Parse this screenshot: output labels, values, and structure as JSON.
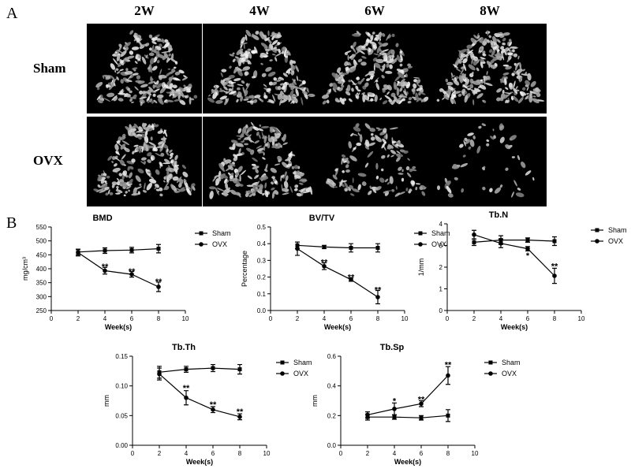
{
  "figure": {
    "panel_a": "A",
    "panel_b": "B",
    "columns": [
      "2W",
      "4W",
      "6W",
      "8W"
    ],
    "rows": [
      "Sham",
      "OVX"
    ]
  },
  "scan_images": [
    {
      "row": "Sham",
      "col": "2W",
      "density": 0.85
    },
    {
      "row": "Sham",
      "col": "4W",
      "density": 0.85
    },
    {
      "row": "Sham",
      "col": "6W",
      "density": 0.85
    },
    {
      "row": "Sham",
      "col": "8W",
      "density": 0.9
    },
    {
      "row": "OVX",
      "col": "2W",
      "density": 0.75
    },
    {
      "row": "OVX",
      "col": "4W",
      "density": 0.8
    },
    {
      "row": "OVX",
      "col": "6W",
      "density": 0.45
    },
    {
      "row": "OVX",
      "col": "8W",
      "density": 0.2
    }
  ],
  "chart_data": [
    {
      "type": "line",
      "title": "BMD",
      "xlabel": "Week(s)",
      "ylabel": "mg/cm³",
      "xlim": [
        0,
        10
      ],
      "ylim": [
        250,
        550
      ],
      "xticks": [
        0,
        2,
        4,
        6,
        8,
        10
      ],
      "yticks": [
        250,
        300,
        350,
        400,
        450,
        500,
        550
      ],
      "ytick_labels": [
        "250",
        "300",
        "350",
        "400",
        "450",
        "500",
        "550"
      ],
      "legend": "right",
      "series": [
        {
          "name": "Sham",
          "marker": "square",
          "x": [
            2,
            4,
            6,
            8
          ],
          "y": [
            460,
            465,
            467,
            472
          ],
          "err": [
            10,
            10,
            10,
            15
          ]
        },
        {
          "name": "OVX",
          "marker": "circle",
          "x": [
            2,
            4,
            6,
            8
          ],
          "y": [
            458,
            393,
            380,
            335
          ],
          "err": [
            12,
            12,
            10,
            17
          ]
        }
      ],
      "annotations": [
        {
          "x": 4,
          "y": 408,
          "text": "**"
        },
        {
          "x": 6,
          "y": 392,
          "text": "**"
        },
        {
          "x": 8,
          "y": 355,
          "text": "**"
        }
      ]
    },
    {
      "type": "line",
      "title": "BV/TV",
      "xlabel": "Week(s)",
      "ylabel": "Percentage",
      "xlim": [
        0,
        10
      ],
      "ylim": [
        0,
        0.5
      ],
      "xticks": [
        0,
        2,
        4,
        6,
        8,
        10
      ],
      "yticks": [
        0,
        0.1,
        0.2,
        0.3,
        0.4,
        0.5
      ],
      "ytick_labels": [
        "0.0",
        "0.1",
        "0.2",
        "0.3",
        "0.4",
        "0.5"
      ],
      "legend": "right",
      "series": [
        {
          "name": "Sham",
          "marker": "square",
          "x": [
            2,
            4,
            6,
            8
          ],
          "y": [
            0.39,
            0.38,
            0.375,
            0.375
          ],
          "err": [
            0.02,
            0.01,
            0.025,
            0.025
          ]
        },
        {
          "name": "OVX",
          "marker": "circle",
          "x": [
            2,
            4,
            6,
            8
          ],
          "y": [
            0.37,
            0.265,
            0.185,
            0.08
          ],
          "err": [
            0.04,
            0.02,
            0.01,
            0.04
          ]
        }
      ],
      "annotations": [
        {
          "x": 4,
          "y": 0.29,
          "text": "**"
        },
        {
          "x": 6,
          "y": 0.2,
          "text": "**"
        },
        {
          "x": 8,
          "y": 0.125,
          "text": "**"
        }
      ]
    },
    {
      "type": "line",
      "title": "Tb.N",
      "xlabel": "Week(s)",
      "ylabel": "1/mm",
      "xlim": [
        0,
        10
      ],
      "ylim": [
        0,
        4
      ],
      "xticks": [
        0,
        2,
        4,
        6,
        8,
        10
      ],
      "yticks": [
        0,
        1,
        2,
        3,
        4
      ],
      "ytick_labels": [
        "0",
        "1",
        "2",
        "3",
        "4"
      ],
      "legend": "right",
      "series": [
        {
          "name": "Sham",
          "marker": "square",
          "x": [
            2,
            4,
            6,
            8
          ],
          "y": [
            3.15,
            3.25,
            3.25,
            3.2
          ],
          "err": [
            0.15,
            0.2,
            0.1,
            0.2
          ]
        },
        {
          "name": "OVX",
          "marker": "circle",
          "x": [
            2,
            4,
            6,
            8
          ],
          "y": [
            3.5,
            3.1,
            2.85,
            1.6
          ],
          "err": [
            0.2,
            0.2,
            0.1,
            0.35
          ]
        }
      ],
      "annotations": [
        {
          "x": 6,
          "y": 2.55,
          "text": "*"
        },
        {
          "x": 8,
          "y": 2.05,
          "text": "**"
        }
      ]
    },
    {
      "type": "line",
      "title": "Tb.Th",
      "xlabel": "Week(s)",
      "ylabel": "mm",
      "xlim": [
        0,
        10
      ],
      "ylim": [
        0,
        0.15
      ],
      "xticks": [
        0,
        2,
        4,
        6,
        8,
        10
      ],
      "yticks": [
        0,
        0.05,
        0.1,
        0.15
      ],
      "ytick_labels": [
        "0.00",
        "0.05",
        "0.10",
        "0.15"
      ],
      "legend": "right",
      "series": [
        {
          "name": "Sham",
          "marker": "square",
          "x": [
            2,
            4,
            6,
            8
          ],
          "y": [
            0.123,
            0.128,
            0.13,
            0.128
          ],
          "err": [
            0.01,
            0.005,
            0.006,
            0.008
          ]
        },
        {
          "name": "OVX",
          "marker": "circle",
          "x": [
            2,
            4,
            6,
            8
          ],
          "y": [
            0.12,
            0.08,
            0.06,
            0.048
          ],
          "err": [
            0.01,
            0.012,
            0.005,
            0.005
          ]
        }
      ],
      "annotations": [
        {
          "x": 4,
          "y": 0.097,
          "text": "**"
        },
        {
          "x": 6,
          "y": 0.069,
          "text": "**"
        },
        {
          "x": 8,
          "y": 0.057,
          "text": "**"
        }
      ]
    },
    {
      "type": "line",
      "title": "Tb.Sp",
      "xlabel": "Week(s)",
      "ylabel": "mm",
      "xlim": [
        0,
        10
      ],
      "ylim": [
        0,
        0.6
      ],
      "xticks": [
        0,
        2,
        4,
        6,
        8,
        10
      ],
      "yticks": [
        0,
        0.2,
        0.4,
        0.6
      ],
      "ytick_labels": [
        "0.0",
        "0.2",
        "0.4",
        "0.6"
      ],
      "legend": "right",
      "series": [
        {
          "name": "Sham",
          "marker": "square",
          "x": [
            2,
            4,
            6,
            8
          ],
          "y": [
            0.19,
            0.19,
            0.185,
            0.2
          ],
          "err": [
            0.02,
            0.015,
            0.015,
            0.04
          ]
        },
        {
          "name": "OVX",
          "marker": "circle",
          "x": [
            2,
            4,
            6,
            8
          ],
          "y": [
            0.205,
            0.245,
            0.28,
            0.47
          ],
          "err": [
            0.02,
            0.04,
            0.02,
            0.06
          ]
        }
      ],
      "annotations": [
        {
          "x": 4,
          "y": 0.3,
          "text": "*"
        },
        {
          "x": 6,
          "y": 0.31,
          "text": "**"
        },
        {
          "x": 8,
          "y": 0.545,
          "text": "**"
        }
      ]
    }
  ]
}
